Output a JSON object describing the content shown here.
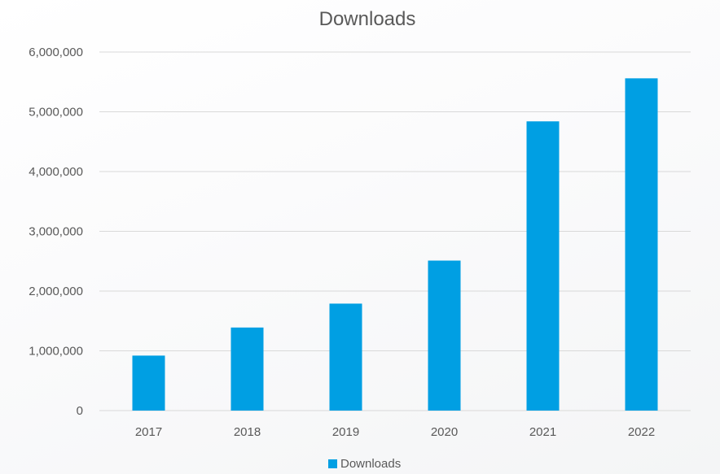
{
  "chart_data": {
    "type": "bar",
    "title": "Downloads",
    "categories": [
      "2017",
      "2018",
      "2019",
      "2020",
      "2021",
      "2022"
    ],
    "series": [
      {
        "name": "Downloads",
        "color": "#009fe3",
        "values": [
          920000,
          1390000,
          1790000,
          2510000,
          4840000,
          5560000
        ]
      }
    ],
    "ylim": [
      0,
      6000000
    ],
    "yticks": [
      0,
      1000000,
      2000000,
      3000000,
      4000000,
      5000000,
      6000000
    ],
    "ytick_labels": [
      "0",
      "1,000,000",
      "2,000,000",
      "3,000,000",
      "4,000,000",
      "5,000,000",
      "6,000,000"
    ],
    "grid": true,
    "gridline_color": "#d9d9d9",
    "legend_position": "bottom",
    "xlabel": "",
    "ylabel": ""
  }
}
